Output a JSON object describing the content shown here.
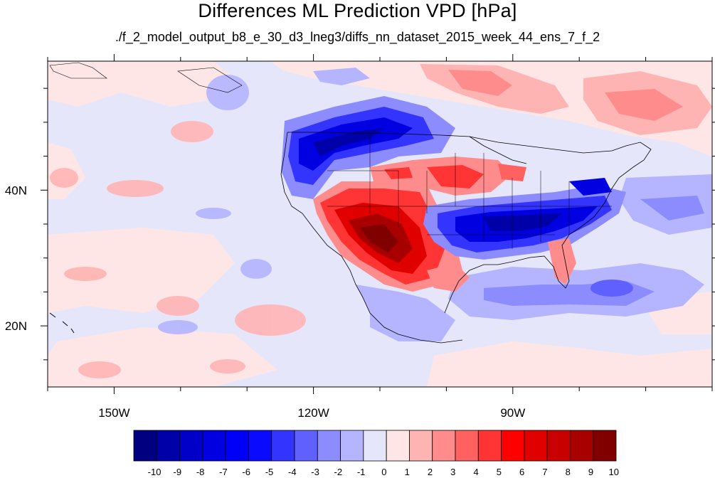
{
  "title": "Differences ML Prediction VPD [hPa]",
  "subtitle": "./f_2_model_output_b8_e_30_d3_lneg3/diffs_nn_dataset_2015_week_44_ens_7_f_2",
  "map": {
    "lon_range": [
      -160,
      -60
    ],
    "lat_range": [
      11,
      59
    ],
    "lon_ticks": [
      {
        "lon": -150,
        "label": "150W"
      },
      {
        "lon": -120,
        "label": "120W"
      },
      {
        "lon": -90,
        "label": "90W"
      }
    ],
    "lat_ticks": [
      {
        "lat": 40,
        "label": "40N"
      },
      {
        "lat": 20,
        "label": "20N"
      }
    ],
    "background_color": "#e6e6fa",
    "regions": [
      {
        "name": "nw-blue",
        "lon": -117,
        "lat": 48.5,
        "value": -7
      },
      {
        "name": "sw-red",
        "lon": -111,
        "lat": 34,
        "value": 9
      },
      {
        "name": "central-red",
        "lon": -102,
        "lat": 41.5,
        "value": 5
      },
      {
        "name": "se-blue",
        "lon": -87,
        "lat": 35.5,
        "value": -7
      },
      {
        "name": "gulf-blue",
        "lon": -83,
        "lat": 24,
        "value": -3
      },
      {
        "name": "north-red",
        "lon": -95,
        "lat": 56,
        "value": 2
      },
      {
        "name": "pacific-pink",
        "lon": -140,
        "lat": 24,
        "value": 1
      }
    ]
  },
  "colorbar": {
    "colors": [
      "#000080",
      "#0000a8",
      "#0000c8",
      "#0000e0",
      "#0000f8",
      "#0a0aff",
      "#3434ff",
      "#6060ff",
      "#8c8cff",
      "#b4b4ff",
      "#e6e6fa",
      "#ffe6e6",
      "#ffb4b4",
      "#ff8c8c",
      "#ff6060",
      "#ff3434",
      "#ff0000",
      "#e00000",
      "#c80000",
      "#a80000",
      "#800000"
    ],
    "labels": [
      "-10",
      "-9",
      "-8",
      "-7",
      "-6",
      "-5",
      "-4",
      "-3",
      "-2",
      "-1",
      "0",
      "1",
      "2",
      "3",
      "4",
      "5",
      "6",
      "7",
      "8",
      "9",
      "10"
    ]
  }
}
